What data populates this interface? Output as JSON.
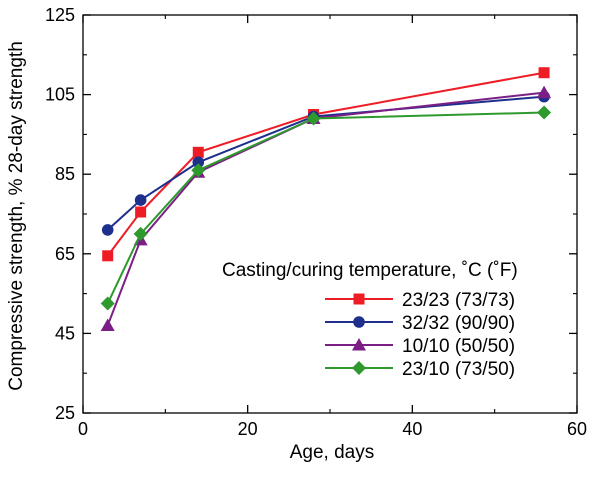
{
  "chart_data": {
    "type": "line",
    "title": "",
    "xlabel": "Age, days",
    "ylabel": "Compressive strength, % 28-day strength",
    "xlim": [
      0,
      60
    ],
    "ylim": [
      25,
      125
    ],
    "xticks": [
      0,
      20,
      40,
      60
    ],
    "yticks": [
      25,
      45,
      65,
      85,
      105,
      125
    ],
    "xtick_labels": [
      "0",
      "20",
      "40",
      "60"
    ],
    "ytick_labels": [
      "25",
      "45",
      "65",
      "85",
      "105",
      "125"
    ],
    "grid": false,
    "legend_title": "Casting/curing temperature, ˚C (˚F)",
    "legend_position": "lower-right",
    "series": [
      {
        "name": "23/23 (73/73)",
        "color": "#ee1c25",
        "marker": "square",
        "x": [
          3,
          7,
          14,
          28,
          56
        ],
        "y": [
          64.5,
          75.5,
          90.5,
          100,
          110.5
        ]
      },
      {
        "name": "32/32 (90/90)",
        "color": "#1e2f8c",
        "marker": "circle",
        "x": [
          3,
          7,
          14,
          28,
          56
        ],
        "y": [
          71,
          78.5,
          88,
          99.5,
          104.5
        ]
      },
      {
        "name": "10/10 (50/50)",
        "color": "#7b1f86",
        "marker": "triangle",
        "x": [
          3,
          7,
          14,
          28,
          56
        ],
        "y": [
          47,
          68.5,
          85.5,
          99,
          105.5
        ]
      },
      {
        "name": "23/10 (73/50)",
        "color": "#2e9a2e",
        "marker": "diamond",
        "x": [
          3,
          7,
          14,
          28,
          56
        ],
        "y": [
          52.5,
          70,
          86,
          99,
          100.5
        ]
      }
    ]
  }
}
